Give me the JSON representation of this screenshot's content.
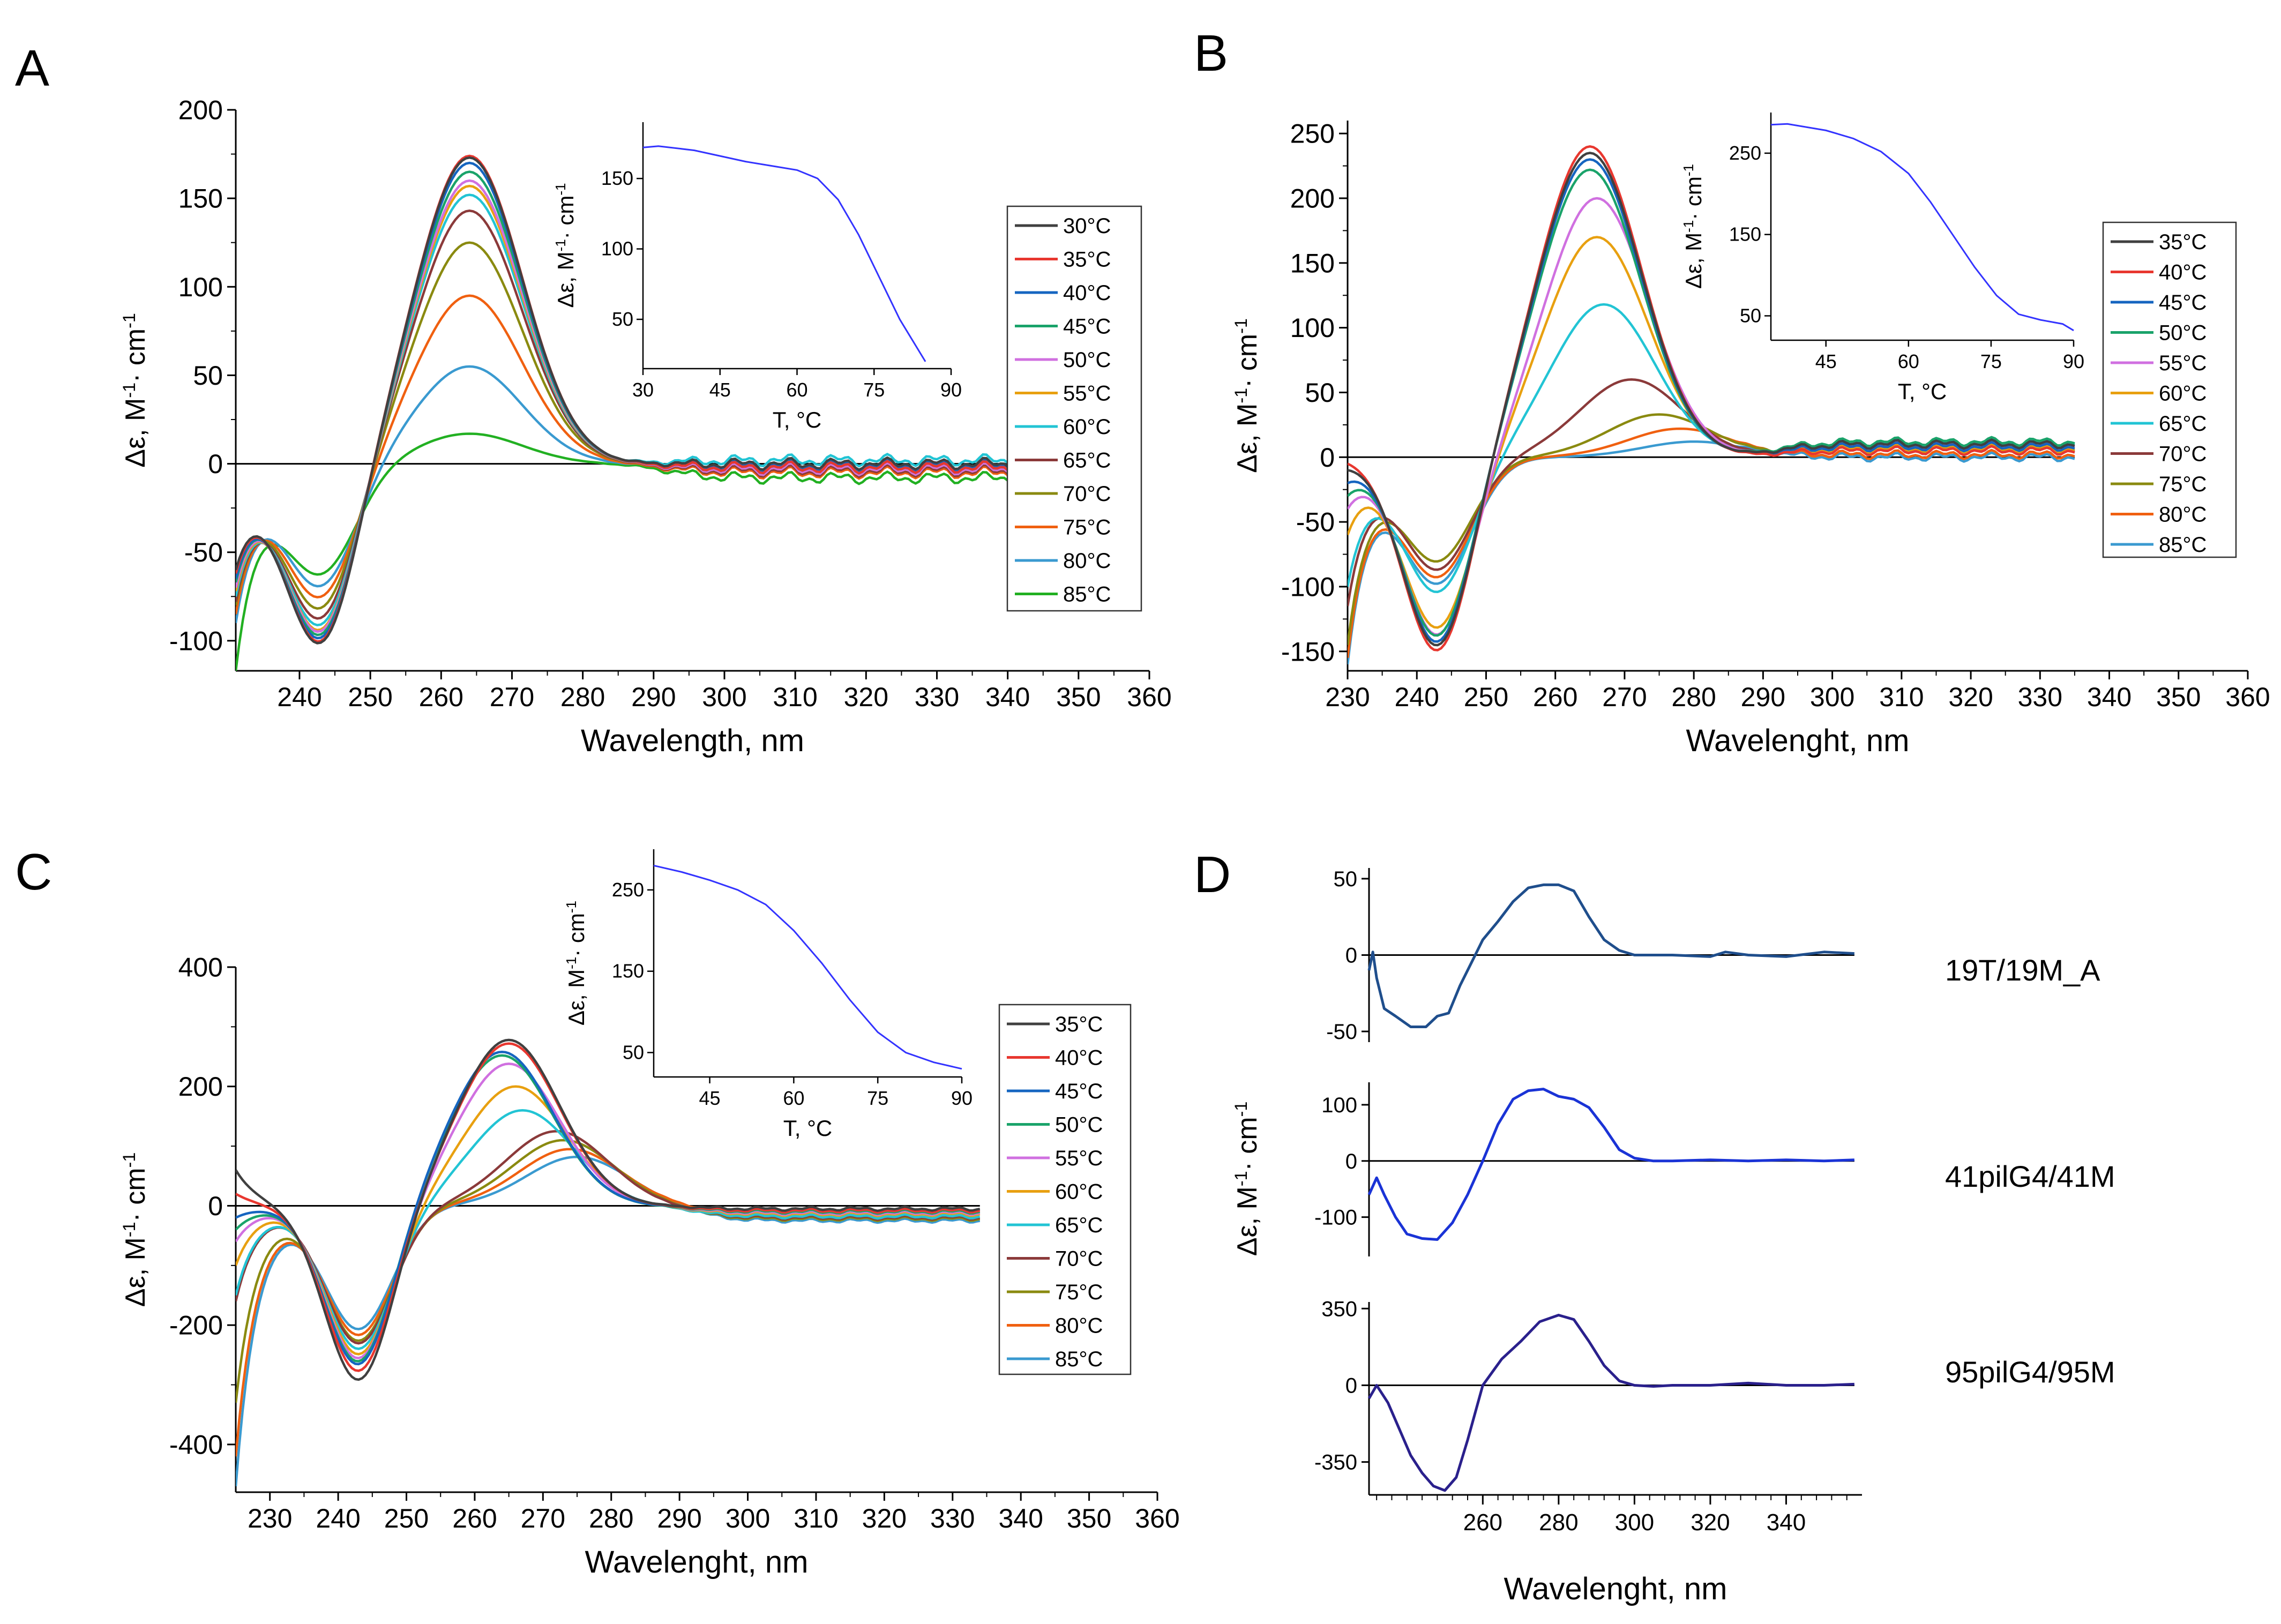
{
  "figure": {
    "panel_letters": [
      "A",
      "B",
      "C",
      "D"
    ]
  },
  "chart_data": [
    {
      "id": "A",
      "type": "line",
      "xlabel": "Wavelength, nm",
      "ylabel": "Δε, M-1· cm-1",
      "xlim": [
        231,
        360
      ],
      "ylim": [
        -117,
        200
      ],
      "xticks": [
        240,
        250,
        260,
        270,
        280,
        290,
        300,
        310,
        320,
        330,
        340,
        350,
        360
      ],
      "yticks": [
        -100,
        -50,
        0,
        50,
        100,
        150,
        200
      ],
      "params": {
        "x0": 231,
        "lam0": 264,
        "xend": 341
      },
      "series": [
        {
          "name": "30°C",
          "color": "#404040",
          "peak": 173,
          "minv": -103,
          "tail": 0,
          "start": -60
        },
        {
          "name": "35°C",
          "color": "#e8372f",
          "peak": 174,
          "minv": -102,
          "tail": -2,
          "start": -62
        },
        {
          "name": "40°C",
          "color": "#1565c0",
          "peak": 170,
          "minv": -100,
          "tail": -1,
          "start": -65
        },
        {
          "name": "45°C",
          "color": "#1aa36a",
          "peak": 165,
          "minv": -98,
          "tail": -2,
          "start": -67
        },
        {
          "name": "50°C",
          "color": "#d070e0",
          "peak": 160,
          "minv": -96,
          "tail": -3,
          "start": -70
        },
        {
          "name": "55°C",
          "color": "#e8a010",
          "peak": 157,
          "minv": -95,
          "tail": -3,
          "start": -72
        },
        {
          "name": "60°C",
          "color": "#22c4d4",
          "peak": 152,
          "minv": -92,
          "tail": 2,
          "start": -75
        },
        {
          "name": "65°C",
          "color": "#8b3a3a",
          "peak": 143,
          "minv": -88,
          "tail": -4,
          "start": -78
        },
        {
          "name": "70°C",
          "color": "#8a8a10",
          "peak": 125,
          "minv": -82,
          "tail": -3,
          "start": -80
        },
        {
          "name": "75°C",
          "color": "#f06010",
          "peak": 95,
          "minv": -75,
          "tail": -5,
          "start": -85
        },
        {
          "name": "80°C",
          "color": "#3a9ad0",
          "peak": 55,
          "minv": -68,
          "tail": -4,
          "start": -90
        },
        {
          "name": "85°C",
          "color": "#22b022",
          "peak": 17,
          "minv": -60,
          "tail": -8,
          "start": -117
        }
      ],
      "inset": {
        "xlabel": "T, °C",
        "ylabel": "Δε, M-1· cm-1",
        "xlim": [
          30,
          90
        ],
        "ylim": [
          15,
          190
        ],
        "xticks": [
          30,
          45,
          60,
          75,
          90
        ],
        "yticks": [
          50,
          100,
          150
        ],
        "x": [
          30,
          33,
          40,
          45,
          50,
          55,
          60,
          64,
          68,
          72,
          76,
          80,
          85
        ],
        "y": [
          172,
          173,
          170,
          166,
          162,
          159,
          156,
          150,
          135,
          110,
          80,
          50,
          20
        ]
      }
    },
    {
      "id": "B",
      "type": "line",
      "xlabel": "Wavelenght, nm",
      "ylabel": "Δε, M-1· cm-1",
      "xlim": [
        230,
        360
      ],
      "ylim": [
        -165,
        260
      ],
      "xticks": [
        230,
        240,
        250,
        260,
        270,
        280,
        290,
        300,
        310,
        320,
        330,
        340,
        350,
        360
      ],
      "yticks": [
        -150,
        -100,
        -50,
        0,
        50,
        100,
        150,
        200,
        250
      ],
      "params": {
        "x0": 230,
        "xend": 335
      },
      "series": [
        {
          "name": "35°C",
          "color": "#404040",
          "peak": 235,
          "lam0": 265,
          "minv": -148,
          "tail": 10,
          "start": -10
        },
        {
          "name": "40°C",
          "color": "#e8372f",
          "peak": 240,
          "lam0": 265,
          "minv": -152,
          "tail": 5,
          "start": -5
        },
        {
          "name": "45°C",
          "color": "#1565c0",
          "peak": 230,
          "lam0": 265,
          "minv": -145,
          "tail": 8,
          "start": -20
        },
        {
          "name": "50°C",
          "color": "#1aa36a",
          "peak": 222,
          "lam0": 265,
          "minv": -140,
          "tail": 12,
          "start": -30
        },
        {
          "name": "55°C",
          "color": "#d070e0",
          "peak": 200,
          "lam0": 266,
          "minv": -138,
          "tail": 9,
          "start": -40
        },
        {
          "name": "60°C",
          "color": "#e8a010",
          "peak": 170,
          "lam0": 266,
          "minv": -132,
          "tail": 7,
          "start": -60
        },
        {
          "name": "65°C",
          "color": "#22c4d4",
          "peak": 118,
          "lam0": 267,
          "minv": -103,
          "tail": 11,
          "start": -100
        },
        {
          "name": "70°C",
          "color": "#8b3a3a",
          "peak": 60,
          "lam0": 271,
          "minv": -85,
          "tail": 5,
          "start": -115
        },
        {
          "name": "75°C",
          "color": "#8a8a10",
          "peak": 33,
          "lam0": 275,
          "minv": -78,
          "tail": 6,
          "start": -145
        },
        {
          "name": "80°C",
          "color": "#f06010",
          "peak": 22,
          "lam0": 278,
          "minv": -90,
          "tail": 2,
          "start": -155
        },
        {
          "name": "85°C",
          "color": "#3a9ad0",
          "peak": 12,
          "lam0": 280,
          "minv": -95,
          "tail": 0,
          "start": -160
        }
      ],
      "inset": {
        "xlabel": "T, °C",
        "ylabel": "Δε, M-1· cm-1",
        "xlim": [
          35,
          90
        ],
        "ylim": [
          20,
          300
        ],
        "xticks": [
          45,
          60,
          75,
          90
        ],
        "yticks": [
          50,
          150,
          250
        ],
        "x": [
          35,
          38,
          45,
          50,
          55,
          60,
          64,
          68,
          72,
          76,
          80,
          84,
          88,
          90
        ],
        "y": [
          285,
          286,
          278,
          268,
          252,
          225,
          190,
          150,
          110,
          75,
          52,
          45,
          40,
          32
        ]
      }
    },
    {
      "id": "C",
      "type": "line",
      "xlabel": "Wavelenght, nm",
      "ylabel": "Δε, M-1· cm-1",
      "xlim": [
        225,
        360
      ],
      "ylim": [
        -480,
        400
      ],
      "xticks": [
        230,
        240,
        250,
        260,
        270,
        280,
        290,
        300,
        310,
        320,
        330,
        340,
        350,
        360
      ],
      "yticks": [
        -400,
        -200,
        0,
        200,
        400
      ],
      "params": {
        "x0": 225,
        "xend": 334
      },
      "series": [
        {
          "name": "35°C",
          "color": "#404040",
          "peak": 278,
          "lam0": 265,
          "minv": -295,
          "tail": -5,
          "start": 60
        },
        {
          "name": "40°C",
          "color": "#e8372f",
          "peak": 272,
          "lam0": 265,
          "minv": -280,
          "tail": -8,
          "start": 20
        },
        {
          "name": "45°C",
          "color": "#1565c0",
          "peak": 258,
          "lam0": 264,
          "minv": -270,
          "tail": -6,
          "start": -20
        },
        {
          "name": "50°C",
          "color": "#1aa36a",
          "peak": 252,
          "lam0": 264,
          "minv": -265,
          "tail": -10,
          "start": -40
        },
        {
          "name": "55°C",
          "color": "#d070e0",
          "peak": 238,
          "lam0": 265,
          "minv": -258,
          "tail": -12,
          "start": -60
        },
        {
          "name": "60°C",
          "color": "#e8a010",
          "peak": 200,
          "lam0": 266,
          "minv": -250,
          "tail": -14,
          "start": -100
        },
        {
          "name": "65°C",
          "color": "#22c4d4",
          "peak": 160,
          "lam0": 267,
          "minv": -240,
          "tail": -18,
          "start": -150
        },
        {
          "name": "70°C",
          "color": "#8b3a3a",
          "peak": 125,
          "lam0": 272,
          "minv": -230,
          "tail": -20,
          "start": -160
        },
        {
          "name": "75°C",
          "color": "#8a8a10",
          "peak": 110,
          "lam0": 273,
          "minv": -225,
          "tail": -22,
          "start": -330
        },
        {
          "name": "80°C",
          "color": "#f06010",
          "peak": 95,
          "lam0": 274,
          "minv": -215,
          "tail": -12,
          "start": -420
        },
        {
          "name": "85°C",
          "color": "#3a9ad0",
          "peak": 82,
          "lam0": 275,
          "minv": -205,
          "tail": -25,
          "start": -470
        }
      ],
      "inset": {
        "xlabel": "T, °C",
        "ylabel": "Δε, M-1· cm-1",
        "xlim": [
          35,
          90
        ],
        "ylim": [
          20,
          300
        ],
        "xticks": [
          45,
          60,
          75,
          90
        ],
        "yticks": [
          50,
          150,
          250
        ],
        "x": [
          35,
          40,
          45,
          50,
          55,
          60,
          65,
          70,
          75,
          80,
          85,
          90
        ],
        "y": [
          280,
          272,
          262,
          250,
          232,
          200,
          160,
          115,
          75,
          50,
          38,
          30
        ]
      }
    },
    {
      "id": "D",
      "type": "line",
      "xlabel": "Wavelenght, nm",
      "ylabel": "Δε, M-1· cm-1",
      "xlim": [
        230,
        360
      ],
      "xticks": [
        260,
        280,
        300,
        320,
        340
      ],
      "subplots": [
        {
          "name": "19T/19M_A",
          "color": "#1f4e8c",
          "ylim": [
            -57,
            57
          ],
          "yticks": [
            -50,
            0,
            50
          ],
          "x": [
            230,
            231,
            232,
            234,
            237,
            241,
            245,
            248,
            251,
            254,
            257,
            260,
            264,
            268,
            272,
            276,
            280,
            284,
            288,
            292,
            296,
            300,
            310,
            320,
            324,
            330,
            340,
            350,
            358
          ],
          "y": [
            -10,
            2,
            -15,
            -35,
            -40,
            -47,
            -47,
            -40,
            -38,
            -20,
            -5,
            10,
            22,
            35,
            44,
            46,
            46,
            42,
            25,
            10,
            3,
            0,
            0,
            -1,
            2,
            0,
            -1,
            2,
            1
          ]
        },
        {
          "name": "41pilG4/41M",
          "color": "#1a33d6",
          "ylim": [
            -170,
            140
          ],
          "yticks": [
            -100,
            0,
            100
          ],
          "x": [
            230,
            232,
            234,
            237,
            240,
            244,
            248,
            252,
            256,
            260,
            264,
            268,
            272,
            276,
            280,
            284,
            288,
            292,
            296,
            300,
            305,
            310,
            320,
            330,
            340,
            350,
            358
          ],
          "y": [
            -60,
            -30,
            -60,
            -100,
            -130,
            -138,
            -140,
            -110,
            -60,
            0,
            65,
            110,
            125,
            128,
            115,
            110,
            95,
            60,
            20,
            5,
            0,
            0,
            2,
            0,
            2,
            0,
            2
          ],
          "lw": 5
        },
        {
          "name": "95pilG4/95M",
          "color": "#2a208c",
          "ylim": [
            -500,
            380
          ],
          "yticks": [
            -350,
            0,
            350
          ],
          "x": [
            230,
            232,
            235,
            238,
            241,
            244,
            247,
            250,
            253,
            256,
            260,
            265,
            270,
            275,
            280,
            284,
            288,
            292,
            296,
            300,
            305,
            310,
            320,
            330,
            340,
            350,
            358
          ],
          "y": [
            -60,
            0,
            -80,
            -200,
            -320,
            -400,
            -460,
            -480,
            -420,
            -250,
            0,
            120,
            200,
            290,
            320,
            300,
            200,
            90,
            20,
            0,
            -5,
            0,
            0,
            10,
            0,
            0,
            5
          ]
        }
      ],
      "inset": null
    }
  ]
}
